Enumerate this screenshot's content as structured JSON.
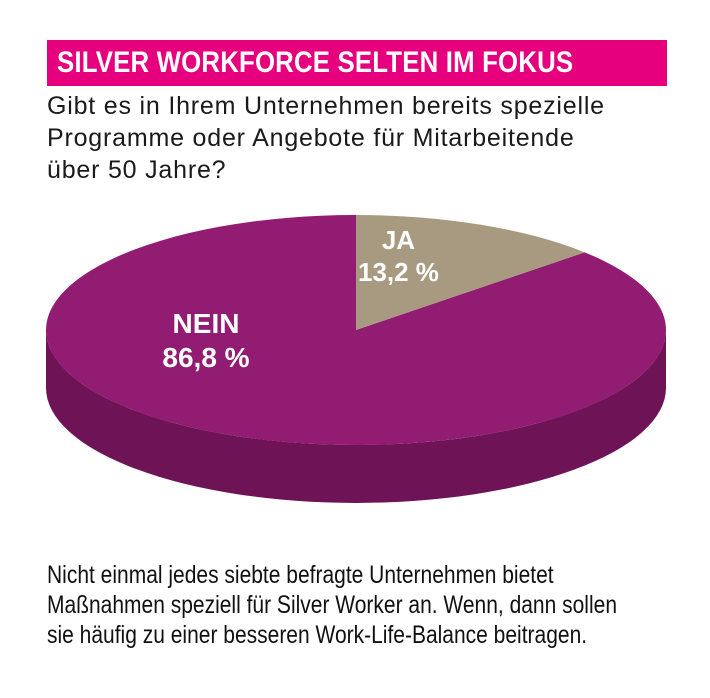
{
  "title": "SILVER WORKFORCE SELTEN IM FOKUS",
  "question_lines": [
    "Gibt es in Ihrem Unternehmen bereits spezielle",
    "Programme oder Angebote für Mitarbeitende",
    "über 50 Jahre?"
  ],
  "caption_lines": [
    "Nicht einmal jedes siebte befragte Unternehmen bietet",
    "Maßnahmen speziell für Silver Worker an. Wenn, dann sollen",
    "sie häufig zu einer besseren Work-Life-Balance beitragen."
  ],
  "colors": {
    "title_background": "#e6007e",
    "nein_top": "#921c72",
    "nein_side": "#6e1456",
    "ja_top": "#a89a80"
  },
  "chart_data": {
    "type": "pie",
    "style": "3d",
    "slices": [
      {
        "label": "JA",
        "value": 13.2,
        "value_label": "13,2 %",
        "color": "#a89a80"
      },
      {
        "label": "NEIN",
        "value": 86.8,
        "value_label": "86,8 %",
        "color": "#921c72"
      }
    ]
  }
}
